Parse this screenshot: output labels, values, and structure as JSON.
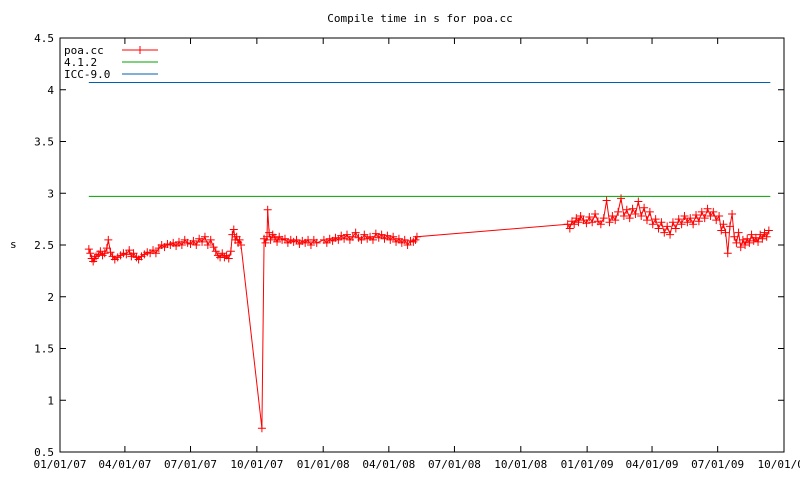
{
  "chart_data": {
    "type": "line",
    "title": "Compile time in s for poa.cc",
    "xlabel": "",
    "ylabel": "s",
    "xlim": [
      "01/01/07",
      "10/01/09"
    ],
    "ylim": [
      0.5,
      4.5
    ],
    "x_tick_labels": [
      "01/01/07",
      "04/01/07",
      "07/01/07",
      "10/01/07",
      "01/01/08",
      "04/01/08",
      "07/01/08",
      "10/01/08",
      "01/01/09",
      "04/01/09",
      "07/01/09",
      "10/01/09"
    ],
    "y_ticks": [
      0.5,
      1,
      1.5,
      2,
      2.5,
      3,
      3.5,
      4,
      4.5
    ],
    "y_tick_labels": [
      "0.5",
      "1",
      "1.5",
      "2",
      "2.5",
      "3",
      "3.5",
      "4",
      "4.5"
    ],
    "legend_position": "top-left",
    "grid": false,
    "series": [
      {
        "name": "poa.cc",
        "color": "#ff0000",
        "marker": "plus",
        "points": [
          [
            "02/10/07",
            2.46
          ],
          [
            "02/12/07",
            2.42
          ],
          [
            "02/14/07",
            2.37
          ],
          [
            "02/16/07",
            2.34
          ],
          [
            "02/18/07",
            2.37
          ],
          [
            "02/20/07",
            2.39
          ],
          [
            "02/23/07",
            2.41
          ],
          [
            "02/26/07",
            2.44
          ],
          [
            "03/01/07",
            2.4
          ],
          [
            "03/04/07",
            2.42
          ],
          [
            "03/07/07",
            2.47
          ],
          [
            "03/09/07",
            2.55
          ],
          [
            "03/12/07",
            2.43
          ],
          [
            "03/15/07",
            2.39
          ],
          [
            "03/18/07",
            2.36
          ],
          [
            "03/22/07",
            2.38
          ],
          [
            "03/26/07",
            2.4
          ],
          [
            "03/30/07",
            2.42
          ],
          [
            "04/03/07",
            2.41
          ],
          [
            "04/07/07",
            2.45
          ],
          [
            "04/10/07",
            2.39
          ],
          [
            "04/13/07",
            2.42
          ],
          [
            "04/17/07",
            2.38
          ],
          [
            "04/20/07",
            2.36
          ],
          [
            "04/24/07",
            2.39
          ],
          [
            "04/28/07",
            2.41
          ],
          [
            "05/02/07",
            2.43
          ],
          [
            "05/06/07",
            2.42
          ],
          [
            "05/10/07",
            2.45
          ],
          [
            "05/14/07",
            2.42
          ],
          [
            "05/18/07",
            2.47
          ],
          [
            "05/22/07",
            2.5
          ],
          [
            "05/26/07",
            2.48
          ],
          [
            "05/30/07",
            2.51
          ],
          [
            "06/03/07",
            2.5
          ],
          [
            "06/07/07",
            2.52
          ],
          [
            "06/11/07",
            2.49
          ],
          [
            "06/15/07",
            2.53
          ],
          [
            "06/19/07",
            2.5
          ],
          [
            "06/23/07",
            2.55
          ],
          [
            "06/27/07",
            2.52
          ],
          [
            "07/01/07",
            2.51
          ],
          [
            "07/05/07",
            2.54
          ],
          [
            "07/09/07",
            2.5
          ],
          [
            "07/13/07",
            2.56
          ],
          [
            "07/17/07",
            2.53
          ],
          [
            "07/21/07",
            2.58
          ],
          [
            "07/25/07",
            2.5
          ],
          [
            "07/29/07",
            2.55
          ],
          [
            "08/02/07",
            2.48
          ],
          [
            "08/05/07",
            2.44
          ],
          [
            "08/08/07",
            2.4
          ],
          [
            "08/11/07",
            2.38
          ],
          [
            "08/14/07",
            2.42
          ],
          [
            "08/17/07",
            2.38
          ],
          [
            "08/20/07",
            2.4
          ],
          [
            "08/23/07",
            2.37
          ],
          [
            "08/26/07",
            2.44
          ],
          [
            "08/28/07",
            2.6
          ],
          [
            "08/30/07",
            2.65
          ],
          [
            "09/01/07",
            2.55
          ],
          [
            "09/03/07",
            2.58
          ],
          [
            "09/05/07",
            2.52
          ],
          [
            "09/07/07",
            2.55
          ],
          [
            "09/09/07",
            2.5
          ],
          [
            "10/08/07",
            0.73
          ],
          [
            "10/11/07",
            2.56
          ],
          [
            "10/13/07",
            2.52
          ],
          [
            "10/15/07",
            2.58
          ],
          [
            "10/16/07",
            2.84
          ],
          [
            "10/18/07",
            2.62
          ],
          [
            "10/20/07",
            2.55
          ],
          [
            "10/23/07",
            2.6
          ],
          [
            "10/26/07",
            2.57
          ],
          [
            "10/29/07",
            2.53
          ],
          [
            "11/01/07",
            2.58
          ],
          [
            "11/05/07",
            2.55
          ],
          [
            "11/09/07",
            2.56
          ],
          [
            "11/13/07",
            2.52
          ],
          [
            "11/17/07",
            2.55
          ],
          [
            "11/21/07",
            2.53
          ],
          [
            "11/25/07",
            2.55
          ],
          [
            "11/29/07",
            2.51
          ],
          [
            "12/03/07",
            2.54
          ],
          [
            "12/07/07",
            2.52
          ],
          [
            "12/11/07",
            2.55
          ],
          [
            "12/15/07",
            2.5
          ],
          [
            "12/19/07",
            2.55
          ],
          [
            "12/23/07",
            2.52
          ],
          [
            "01/02/08",
            2.55
          ],
          [
            "01/06/08",
            2.52
          ],
          [
            "01/10/08",
            2.56
          ],
          [
            "01/14/08",
            2.54
          ],
          [
            "01/18/08",
            2.57
          ],
          [
            "01/22/08",
            2.55
          ],
          [
            "01/26/08",
            2.59
          ],
          [
            "01/30/08",
            2.56
          ],
          [
            "02/03/08",
            2.6
          ],
          [
            "02/07/08",
            2.55
          ],
          [
            "02/11/08",
            2.58
          ],
          [
            "02/15/08",
            2.62
          ],
          [
            "02/19/08",
            2.57
          ],
          [
            "02/23/08",
            2.55
          ],
          [
            "02/27/08",
            2.6
          ],
          [
            "03/02/08",
            2.56
          ],
          [
            "03/06/08",
            2.58
          ],
          [
            "03/10/08",
            2.55
          ],
          [
            "03/14/08",
            2.61
          ],
          [
            "03/18/08",
            2.57
          ],
          [
            "03/22/08",
            2.6
          ],
          [
            "03/26/08",
            2.56
          ],
          [
            "03/30/08",
            2.59
          ],
          [
            "04/03/08",
            2.55
          ],
          [
            "04/07/08",
            2.58
          ],
          [
            "04/11/08",
            2.53
          ],
          [
            "04/15/08",
            2.56
          ],
          [
            "04/19/08",
            2.52
          ],
          [
            "04/23/08",
            2.55
          ],
          [
            "04/27/08",
            2.5
          ],
          [
            "05/01/08",
            2.54
          ],
          [
            "05/05/08",
            2.53
          ],
          [
            "05/08/08",
            2.55
          ],
          [
            "05/10/08",
            2.58
          ],
          [
            "12/05/08",
            2.7
          ],
          [
            "12/08/08",
            2.66
          ],
          [
            "12/11/08",
            2.73
          ],
          [
            "12/14/08",
            2.7
          ],
          [
            "12/17/08",
            2.76
          ],
          [
            "12/20/08",
            2.72
          ],
          [
            "12/23/08",
            2.78
          ],
          [
            "12/27/08",
            2.74
          ],
          [
            "12/31/08",
            2.71
          ],
          [
            "01/04/09",
            2.77
          ],
          [
            "01/08/09",
            2.72
          ],
          [
            "01/12/09",
            2.8
          ],
          [
            "01/16/09",
            2.73
          ],
          [
            "01/20/09",
            2.7
          ],
          [
            "01/24/09",
            2.76
          ],
          [
            "01/28/09",
            2.93
          ],
          [
            "02/01/09",
            2.72
          ],
          [
            "02/05/09",
            2.78
          ],
          [
            "02/09/09",
            2.74
          ],
          [
            "02/13/09",
            2.82
          ],
          [
            "02/17/09",
            2.95
          ],
          [
            "02/21/09",
            2.78
          ],
          [
            "02/25/09",
            2.84
          ],
          [
            "03/01/09",
            2.76
          ],
          [
            "03/05/09",
            2.85
          ],
          [
            "03/09/09",
            2.8
          ],
          [
            "03/13/09",
            2.92
          ],
          [
            "03/17/09",
            2.78
          ],
          [
            "03/21/09",
            2.86
          ],
          [
            "03/25/09",
            2.74
          ],
          [
            "03/29/09",
            2.82
          ],
          [
            "04/02/09",
            2.7
          ],
          [
            "04/06/09",
            2.75
          ],
          [
            "04/10/09",
            2.66
          ],
          [
            "04/14/09",
            2.72
          ],
          [
            "04/18/09",
            2.62
          ],
          [
            "04/22/09",
            2.68
          ],
          [
            "04/26/09",
            2.6
          ],
          [
            "04/30/09",
            2.72
          ],
          [
            "05/04/09",
            2.66
          ],
          [
            "05/08/09",
            2.75
          ],
          [
            "05/12/09",
            2.7
          ],
          [
            "05/16/09",
            2.78
          ],
          [
            "05/20/09",
            2.72
          ],
          [
            "05/24/09",
            2.76
          ],
          [
            "05/28/09",
            2.7
          ],
          [
            "06/01/09",
            2.79
          ],
          [
            "06/05/09",
            2.73
          ],
          [
            "06/09/09",
            2.82
          ],
          [
            "06/13/09",
            2.76
          ],
          [
            "06/17/09",
            2.85
          ],
          [
            "06/21/09",
            2.78
          ],
          [
            "06/25/09",
            2.82
          ],
          [
            "06/29/09",
            2.74
          ],
          [
            "07/03/09",
            2.78
          ],
          [
            "07/06/09",
            2.64
          ],
          [
            "07/09/09",
            2.7
          ],
          [
            "07/12/09",
            2.62
          ],
          [
            "07/15/09",
            2.42
          ],
          [
            "07/18/09",
            2.68
          ],
          [
            "07/21/09",
            2.8
          ],
          [
            "07/24/09",
            2.58
          ],
          [
            "07/27/09",
            2.52
          ],
          [
            "07/30/09",
            2.62
          ],
          [
            "08/02/09",
            2.48
          ],
          [
            "08/05/09",
            2.55
          ],
          [
            "08/08/09",
            2.5
          ],
          [
            "08/11/09",
            2.56
          ],
          [
            "08/14/09",
            2.52
          ],
          [
            "08/17/09",
            2.6
          ],
          [
            "08/20/09",
            2.54
          ],
          [
            "08/23/09",
            2.57
          ],
          [
            "08/26/09",
            2.53
          ],
          [
            "08/29/09",
            2.6
          ],
          [
            "09/01/09",
            2.56
          ],
          [
            "09/04/09",
            2.62
          ],
          [
            "09/07/09",
            2.58
          ],
          [
            "09/10/09",
            2.64
          ]
        ]
      },
      {
        "name": "4.1.2",
        "color": "#00a000",
        "marker": "none",
        "points": [
          [
            "02/10/07",
            2.97
          ],
          [
            "09/12/09",
            2.97
          ]
        ]
      },
      {
        "name": "ICC-9.0",
        "color": "#0060ad",
        "marker": "none",
        "points": [
          [
            "02/10/07",
            4.07
          ],
          [
            "09/12/09",
            4.07
          ]
        ]
      }
    ]
  }
}
